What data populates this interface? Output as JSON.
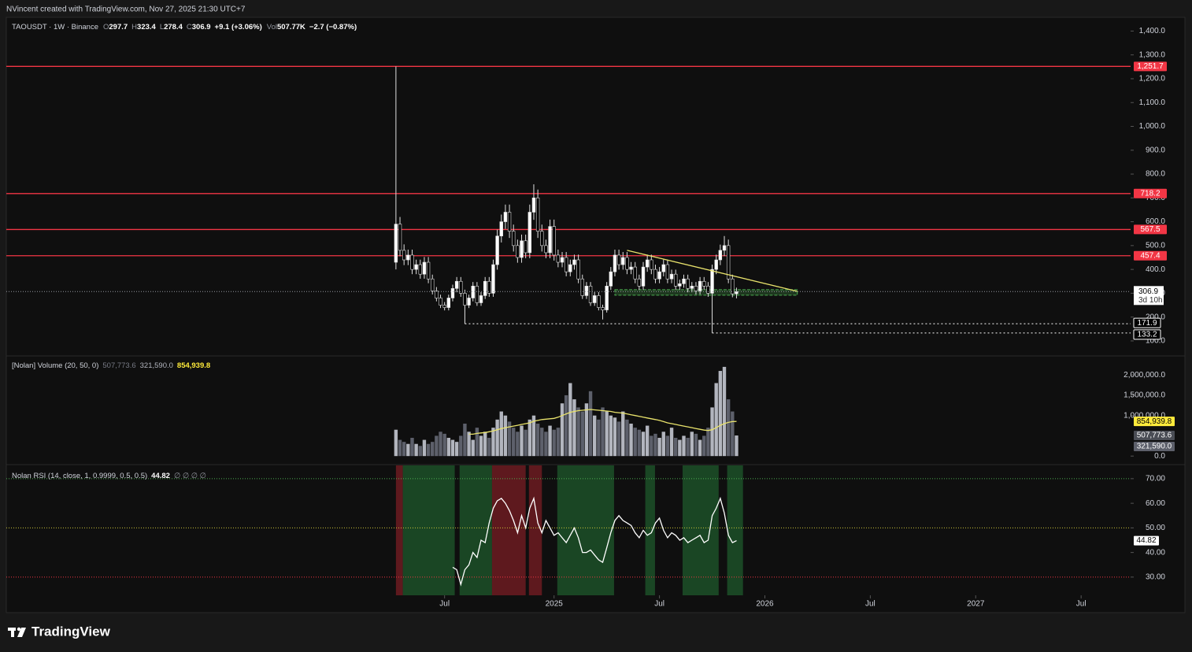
{
  "header": {
    "credit": "NVincent created with TradingView.com, Nov 27, 2025 21:30 UTC+7"
  },
  "footer": {
    "brand": "TradingView"
  },
  "chart_data": [
    {
      "type": "candlestick",
      "symbol": "TAOUSDT · 1W · Binance",
      "ohlc_keys": [
        "O",
        "H",
        "L",
        "C"
      ],
      "change_label": "+9.1 (+3.06%)",
      "volume_key": "Vol",
      "volume_label": "507.77K",
      "volume_change_label": "−2.7 (−0.87%)",
      "last_price_countdown": "3d 10h",
      "up_color": "#ffffff",
      "down_color": "#000000",
      "wick_color": "#e0e0e0",
      "x": [
        0,
        1,
        2,
        3,
        4,
        5,
        6,
        7,
        8,
        9,
        10,
        11,
        12,
        13,
        14,
        15,
        16,
        17,
        18,
        19,
        20,
        21,
        22,
        23,
        24,
        25,
        26,
        27,
        28,
        29,
        30,
        31,
        32,
        33,
        34,
        35,
        36,
        37,
        38,
        39,
        40,
        41,
        42,
        43,
        44,
        45,
        46,
        47,
        48,
        49,
        50,
        51,
        52,
        53,
        54,
        55,
        56,
        57,
        58,
        59,
        60,
        61,
        62,
        63,
        64,
        65,
        66,
        67,
        68,
        69,
        70,
        71,
        72,
        73,
        74,
        75,
        76,
        77,
        78,
        79,
        80,
        81,
        82,
        83,
        84
      ],
      "open": [
        430,
        590,
        480,
        440,
        460,
        400,
        420,
        380,
        430,
        360,
        310,
        280,
        250,
        240,
        280,
        320,
        350,
        300,
        250,
        280,
        330,
        260,
        290,
        350,
        300,
        420,
        540,
        600,
        640,
        560,
        500,
        450,
        520,
        470,
        640,
        700,
        560,
        500,
        470,
        580,
        460,
        430,
        450,
        390,
        420,
        440,
        360,
        290,
        330,
        260,
        290,
        240,
        230,
        330,
        390,
        460,
        420,
        450,
        400,
        410,
        360,
        330,
        410,
        440,
        400,
        360,
        390,
        420,
        360,
        380,
        330,
        340,
        360,
        320,
        330,
        310,
        350,
        330,
        300,
        400,
        440,
        480,
        500,
        360,
        297.7
      ],
      "high": [
        1251.7,
        620,
        505,
        483,
        483,
        441,
        441,
        452,
        452,
        378,
        326,
        294,
        263,
        294,
        336,
        368,
        368,
        315,
        294,
        347,
        347,
        305,
        368,
        368,
        441,
        567,
        630,
        672,
        672,
        588,
        525,
        546,
        546,
        672,
        757,
        735,
        588,
        525,
        609,
        609,
        483,
        473,
        473,
        441,
        462,
        462,
        378,
        347,
        347,
        305,
        305,
        252,
        347,
        410,
        483,
        483,
        473,
        473,
        431,
        431,
        378,
        431,
        462,
        462,
        420,
        410,
        441,
        441,
        399,
        399,
        357,
        378,
        378,
        347,
        347,
        368,
        368,
        347,
        420,
        462,
        504,
        540,
        525,
        378,
        323.4
      ],
      "low": [
        400,
        455,
        418,
        418,
        380,
        380,
        361,
        361,
        342,
        295,
        266,
        238,
        228,
        228,
        266,
        304,
        285,
        171.9,
        238,
        266,
        247,
        247,
        276,
        285,
        285,
        399,
        513,
        570,
        532,
        475,
        428,
        428,
        447,
        447,
        608,
        532,
        475,
        447,
        447,
        437,
        409,
        409,
        371,
        371,
        399,
        342,
        276,
        276,
        247,
        247,
        228,
        190,
        219,
        314,
        371,
        399,
        399,
        380,
        380,
        342,
        314,
        314,
        390,
        380,
        342,
        342,
        371,
        342,
        342,
        314,
        314,
        323,
        304,
        304,
        295,
        295,
        314,
        285,
        133.2,
        380,
        418,
        456,
        342,
        283,
        278.4
      ],
      "close": [
        590,
        480,
        440,
        460,
        400,
        420,
        380,
        430,
        360,
        310,
        280,
        250,
        240,
        280,
        320,
        350,
        300,
        250,
        280,
        330,
        260,
        290,
        350,
        300,
        420,
        540,
        600,
        640,
        560,
        500,
        450,
        520,
        470,
        640,
        700,
        560,
        500,
        470,
        580,
        460,
        430,
        450,
        390,
        420,
        440,
        360,
        290,
        330,
        260,
        290,
        240,
        230,
        330,
        390,
        460,
        420,
        450,
        400,
        410,
        360,
        330,
        410,
        440,
        400,
        360,
        390,
        420,
        360,
        380,
        330,
        340,
        360,
        320,
        330,
        310,
        350,
        330,
        300,
        400,
        440,
        480,
        500,
        360,
        297.7,
        306.9
      ],
      "xlim": [
        -96.1,
        181.2
      ],
      "xticks": [
        {
          "value": 12,
          "label": "Jul"
        },
        {
          "value": 39,
          "label": "2025"
        },
        {
          "value": 65,
          "label": "Jul"
        },
        {
          "value": 91,
          "label": "2026"
        },
        {
          "value": 117,
          "label": "Jul"
        },
        {
          "value": 143,
          "label": "2027"
        },
        {
          "value": 169,
          "label": "Jul"
        }
      ],
      "ylim": [
        37,
        1451
      ],
      "yticks": [
        {
          "value": 100,
          "label": "100.0"
        },
        {
          "value": 200,
          "label": "200.0"
        },
        {
          "value": 300,
          "label": "300.0"
        },
        {
          "value": 400,
          "label": "400.0"
        },
        {
          "value": 500,
          "label": "500.0"
        },
        {
          "value": 600,
          "label": "600.0"
        },
        {
          "value": 700,
          "label": "700.0"
        },
        {
          "value": 800,
          "label": "800.0"
        },
        {
          "value": 900,
          "label": "900.0"
        },
        {
          "value": 1000,
          "label": "1,000.0"
        },
        {
          "value": 1100,
          "label": "1,100.0"
        },
        {
          "value": 1200,
          "label": "1,200.0"
        },
        {
          "value": 1300,
          "label": "1,300.0"
        },
        {
          "value": 1400,
          "label": "1,400.0"
        }
      ],
      "levels": [
        {
          "value": 1251.7,
          "label": "1,251.7"
        },
        718.2,
        567.5,
        457.4
      ],
      "level_color": "#f23645",
      "support_lines": [
        {
          "from": 17,
          "value": 171.9
        },
        {
          "from": 78,
          "value": 133.2
        }
      ],
      "trendline": {
        "x": [
          57,
          99
        ],
        "values": [
          480,
          308
        ],
        "color": "#e9e36c"
      },
      "zone": {
        "x": [
          54,
          99
        ],
        "range": [
          292,
          315
        ],
        "color": "#4caf50"
      }
    },
    {
      "type": "bar",
      "title": "[Nolan] Volume (20, 50, 0)",
      "legend_values": [
        {
          "value": 507773.6,
          "label": "507,773.6",
          "color": "#787b86",
          "box": "#4a4d55"
        },
        {
          "value": 321590,
          "label": "321,590.0",
          "color": "#b2b5be",
          "box": "#5d606b"
        },
        {
          "value": 854939.8,
          "label": "854,939.8",
          "color": "#ffeb3b",
          "box": "#ffeb3b"
        }
      ],
      "up_color": "#b2b5be",
      "down_color": "#5d606b",
      "values": [
        650000,
        400000,
        350000,
        300000,
        450000,
        300000,
        250000,
        400000,
        300000,
        350000,
        500000,
        600000,
        550000,
        450000,
        400000,
        350000,
        500000,
        800000,
        600000,
        400000,
        700000,
        500000,
        600000,
        450000,
        700000,
        900000,
        1100000,
        1000000,
        850000,
        700000,
        600000,
        750000,
        650000,
        900000,
        1000000,
        800000,
        700000,
        600000,
        750000,
        650000,
        700000,
        1300000,
        1500000,
        1800000,
        1400000,
        1200000,
        1100000,
        1300000,
        1600000,
        1000000,
        900000,
        1200000,
        1100000,
        1000000,
        950000,
        850000,
        1100000,
        900000,
        800000,
        700000,
        650000,
        600000,
        750000,
        500000,
        550000,
        450000,
        600000,
        500000,
        700000,
        450000,
        400000,
        500000,
        450000,
        600000,
        550000,
        400000,
        500000,
        700000,
        1200000,
        1800000,
        2100000,
        2200000,
        1400000,
        1100000,
        507773.6
      ],
      "ma": {
        "color": "#e9e36c",
        "values": [
          null,
          null,
          null,
          null,
          null,
          null,
          null,
          null,
          null,
          null,
          null,
          null,
          null,
          null,
          null,
          null,
          null,
          null,
          540000,
          540000,
          560000,
          570000,
          580000,
          600000,
          620000,
          650000,
          680000,
          700000,
          720000,
          740000,
          760000,
          780000,
          800000,
          820000,
          860000,
          880000,
          900000,
          910000,
          920000,
          930000,
          960000,
          1000000,
          1040000,
          1080000,
          1100000,
          1120000,
          1130000,
          1140000,
          1150000,
          1140000,
          1130000,
          1120000,
          1110000,
          1100000,
          1080000,
          1070000,
          1060000,
          1040000,
          1020000,
          1000000,
          980000,
          960000,
          940000,
          920000,
          900000,
          880000,
          850000,
          820000,
          800000,
          780000,
          760000,
          740000,
          720000,
          700000,
          680000,
          660000,
          640000,
          630000,
          650000,
          700000,
          760000,
          800000,
          830000,
          850000,
          854939.8
        ]
      },
      "ylim": [
        -210000,
        2470000
      ],
      "yticks": [
        {
          "value": 0,
          "label": "0.0"
        },
        {
          "value": 1000000,
          "label": "1,000,000.0"
        },
        {
          "value": 1500000,
          "label": "1,500,000.0"
        },
        {
          "value": 2000000,
          "label": "2,000,000.0"
        }
      ]
    },
    {
      "type": "line",
      "title": "Nolan RSI (14, close, 1, 0.9999, 0.5, 0.5)",
      "extra_label": "∅ ∅ ∅ ∅",
      "color": "#ffffff",
      "values": [
        null,
        null,
        null,
        null,
        null,
        null,
        null,
        null,
        null,
        null,
        null,
        null,
        null,
        null,
        34,
        33,
        27,
        33,
        35,
        40,
        38,
        45,
        44,
        52,
        58,
        61,
        62,
        60,
        57,
        53,
        48,
        55,
        50,
        58,
        62,
        52,
        48,
        53,
        50,
        47,
        48,
        46,
        44,
        47,
        50,
        46,
        40,
        40,
        41,
        39,
        37,
        36,
        42,
        48,
        53,
        55,
        53,
        52,
        51,
        48,
        46,
        49,
        47,
        48,
        52,
        54,
        49,
        46,
        48,
        47,
        45,
        46,
        44,
        45,
        46,
        47,
        44,
        45,
        55,
        58,
        62,
        56,
        47,
        44,
        44.82
      ],
      "zones": [
        {
          "x": [
            0,
            1.7
          ],
          "color": "#7a1e24"
        },
        {
          "x": [
            1.7,
            14.5
          ],
          "color": "#1f5a2c"
        },
        {
          "x": [
            15.7,
            23.7
          ],
          "color": "#1f5a2c"
        },
        {
          "x": [
            23.7,
            32
          ],
          "color": "#7a1e24"
        },
        {
          "x": [
            32.8,
            36
          ],
          "color": "#7a1e24"
        },
        {
          "x": [
            39.8,
            53.8
          ],
          "color": "#1f5a2c"
        },
        {
          "x": [
            61.5,
            63.9
          ],
          "color": "#1f5a2c"
        },
        {
          "x": [
            70.7,
            79.6
          ],
          "color": "#1f5a2c"
        },
        {
          "x": [
            81.7,
            85.6
          ],
          "color": "#1f5a2c"
        }
      ],
      "levels": [
        {
          "value": 70,
          "color": "#4caf50"
        },
        {
          "value": 50,
          "color": "#c9c33a"
        },
        {
          "value": 30,
          "color": "#f23645"
        }
      ],
      "ylim": [
        22.6,
        75.4
      ],
      "yticks": [
        {
          "value": 30,
          "label": "30.00"
        },
        {
          "value": 40,
          "label": "40.00"
        },
        {
          "value": 50,
          "label": "50.00"
        },
        {
          "value": 60,
          "label": "60.00"
        },
        {
          "value": 70,
          "label": "70.00"
        }
      ]
    }
  ]
}
